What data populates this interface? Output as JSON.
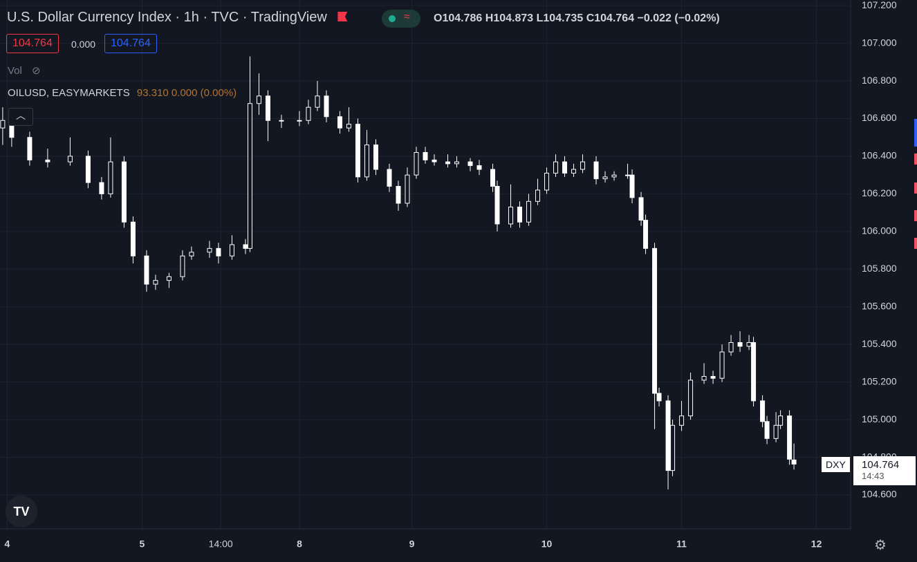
{
  "header": {
    "symbol_title": "U.S. Dollar Currency Index",
    "interval": "1h",
    "exchange": "TVC",
    "source": "TradingView",
    "ohlc_letters": [
      "O",
      "H",
      "L",
      "C"
    ],
    "change": "−0.022 (−0.02%)",
    "spread": "0.000",
    "volume_label": "Vol",
    "overlay_symbol": "OILUSD, EASYMARKETS",
    "overlay_values": "93.310  0.000 (0.00%)",
    "price_label_symbol": "DXY",
    "countdown": "14:43"
  },
  "chart_data": {
    "type": "candlestick",
    "color": "#ffffff",
    "grid": true,
    "x": [
      0,
      2,
      6,
      10,
      15,
      19,
      22,
      24,
      27,
      29,
      32,
      34,
      37,
      40,
      42,
      46,
      48,
      51,
      54,
      55,
      57,
      59,
      62,
      66,
      68,
      70,
      72,
      75,
      77,
      79,
      81,
      83,
      86,
      88,
      90,
      92,
      94,
      96,
      99,
      101,
      104,
      106,
      109,
      110,
      113,
      115,
      117,
      119,
      121,
      123,
      125,
      127,
      129,
      132,
      134,
      136,
      139,
      140,
      142,
      143,
      145,
      146,
      148,
      149,
      151,
      153,
      156,
      158,
      160,
      162,
      164,
      166,
      167,
      169,
      170,
      172,
      173,
      175,
      176
    ],
    "open": [
      106.55,
      106.59,
      106.5,
      106.38,
      106.37,
      106.4,
      106.26,
      106.2,
      106.37,
      106.05,
      105.87,
      105.72,
      105.74,
      105.76,
      105.87,
      105.89,
      105.91,
      105.87,
      105.93,
      105.91,
      106.68,
      106.72,
      106.59,
      106.59,
      106.59,
      106.66,
      106.72,
      106.61,
      106.55,
      106.57,
      106.29,
      106.46,
      106.33,
      106.24,
      106.15,
      106.3,
      106.42,
      106.38,
      106.37,
      106.36,
      106.37,
      106.35,
      106.33,
      106.24,
      106.04,
      106.13,
      106.05,
      106.16,
      106.22,
      106.31,
      106.37,
      106.31,
      106.33,
      106.37,
      106.28,
      106.29,
      106.3,
      106.3,
      106.18,
      106.06,
      105.91,
      105.14,
      105.1,
      104.73,
      104.97,
      105.02,
      105.21,
      105.23,
      105.22,
      105.36,
      105.41,
      105.39,
      105.41,
      105.1,
      104.99,
      104.9,
      104.97,
      105.02,
      104.786
    ],
    "high": [
      106.66,
      106.62,
      106.53,
      106.44,
      106.5,
      106.43,
      106.29,
      106.5,
      106.4,
      106.08,
      105.9,
      105.77,
      105.78,
      105.9,
      105.92,
      105.95,
      105.94,
      105.98,
      105.96,
      106.93,
      106.84,
      106.75,
      106.62,
      106.64,
      106.7,
      106.8,
      106.75,
      106.64,
      106.66,
      106.6,
      106.54,
      106.49,
      106.36,
      106.27,
      106.34,
      106.45,
      106.45,
      106.41,
      106.41,
      106.4,
      106.39,
      106.38,
      106.36,
      106.27,
      106.25,
      106.16,
      106.2,
      106.28,
      106.34,
      106.41,
      106.4,
      106.36,
      106.41,
      106.4,
      106.32,
      106.32,
      106.36,
      106.33,
      106.21,
      106.09,
      105.94,
      105.17,
      105.13,
      105.0,
      105.1,
      105.25,
      105.3,
      105.26,
      105.4,
      105.45,
      105.47,
      105.45,
      105.44,
      105.13,
      105.02,
      105.04,
      105.05,
      105.05,
      104.873
    ],
    "low": [
      106.46,
      106.45,
      106.35,
      106.34,
      106.35,
      106.23,
      106.17,
      106.18,
      106.02,
      105.83,
      105.68,
      105.69,
      105.7,
      105.74,
      105.85,
      105.86,
      105.83,
      105.85,
      105.88,
      105.89,
      106.62,
      106.48,
      106.55,
      106.56,
      106.57,
      106.64,
      106.58,
      106.52,
      106.53,
      106.26,
      106.27,
      106.3,
      106.21,
      106.11,
      106.13,
      106.28,
      106.36,
      106.35,
      106.34,
      106.34,
      106.32,
      106.3,
      106.21,
      106.0,
      106.02,
      106.02,
      106.03,
      106.14,
      106.2,
      106.29,
      106.29,
      106.29,
      106.31,
      106.25,
      106.26,
      106.27,
      106.28,
      106.15,
      106.03,
      105.88,
      104.95,
      105.07,
      104.63,
      104.7,
      104.94,
      105.0,
      105.19,
      105.19,
      105.2,
      105.34,
      105.36,
      105.37,
      105.07,
      104.96,
      104.87,
      104.88,
      104.95,
      104.76,
      104.735
    ],
    "close": [
      106.59,
      106.5,
      106.38,
      106.37,
      106.4,
      106.26,
      106.2,
      106.37,
      106.05,
      105.87,
      105.72,
      105.74,
      105.76,
      105.87,
      105.89,
      105.91,
      105.87,
      105.93,
      105.91,
      106.68,
      106.72,
      106.59,
      106.59,
      106.59,
      106.66,
      106.72,
      106.61,
      106.55,
      106.57,
      106.29,
      106.46,
      106.33,
      106.24,
      106.15,
      106.3,
      106.42,
      106.38,
      106.37,
      106.36,
      106.37,
      106.35,
      106.33,
      106.24,
      106.04,
      106.13,
      106.05,
      106.16,
      106.22,
      106.31,
      106.37,
      106.31,
      106.33,
      106.37,
      106.28,
      106.29,
      106.3,
      106.3,
      106.18,
      106.06,
      105.91,
      105.14,
      105.1,
      104.73,
      104.97,
      105.02,
      105.21,
      105.23,
      105.22,
      105.36,
      105.41,
      105.39,
      105.41,
      105.1,
      104.99,
      104.9,
      104.97,
      105.02,
      104.79,
      104.764
    ],
    "ylim": [
      104.42,
      107.23
    ],
    "yticks": [
      {
        "value": 104.6,
        "label": "104.600"
      },
      {
        "value": 104.8,
        "label": "104.800"
      },
      {
        "value": 105,
        "label": "105.000"
      },
      {
        "value": 105.2,
        "label": "105.200"
      },
      {
        "value": 105.4,
        "label": "105.400"
      },
      {
        "value": 105.6,
        "label": "105.600"
      },
      {
        "value": 105.8,
        "label": "105.800"
      },
      {
        "value": 106,
        "label": "106.000"
      },
      {
        "value": 106.2,
        "label": "106.200"
      },
      {
        "value": 106.4,
        "label": "106.400"
      },
      {
        "value": 106.6,
        "label": "106.600"
      },
      {
        "value": 106.8,
        "label": "106.800"
      },
      {
        "value": 107,
        "label": "107.000"
      },
      {
        "value": 107.2,
        "label": "107.200"
      }
    ],
    "xlim": [
      -0.6,
      188.6
    ],
    "xticks": [
      {
        "value": 1,
        "label": "4"
      },
      {
        "value": 31,
        "label": "5"
      },
      {
        "value": 48.5,
        "label": "14:00"
      },
      {
        "value": 66,
        "label": "8"
      },
      {
        "value": 91,
        "label": "9"
      },
      {
        "value": 121,
        "label": "10"
      },
      {
        "value": 151,
        "label": "11"
      },
      {
        "value": 181,
        "label": "12"
      }
    ]
  }
}
